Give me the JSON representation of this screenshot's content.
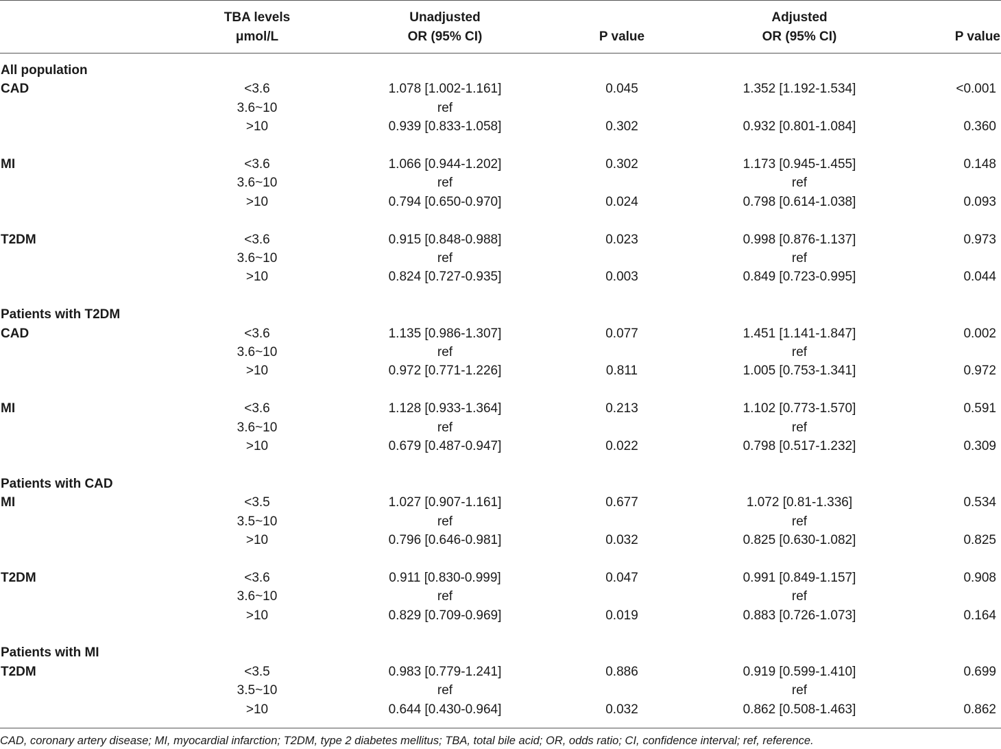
{
  "table": {
    "headers": {
      "tba_line1": "TBA levels",
      "tba_line2": "μmol/L",
      "unadj_line1": "Unadjusted",
      "unadj_line2": "OR (95% CI)",
      "p1": "P value",
      "adj_line1": "Adjusted",
      "adj_line2": "OR (95% CI)",
      "p2": "P value"
    },
    "sections": [
      {
        "title": "All population",
        "blocks": [
          {
            "outcome": "CAD",
            "rows": [
              {
                "level": "<3.6",
                "unadj": "1.078 [1.002-1.161]",
                "p1": "0.045",
                "adj": "1.352 [1.192-1.534]",
                "p2": "<0.001"
              },
              {
                "level": "3.6~10",
                "unadj": "ref",
                "p1": "",
                "adj": "",
                "p2": ""
              },
              {
                "level": ">10",
                "unadj": "0.939 [0.833-1.058]",
                "p1": "0.302",
                "adj": "0.932 [0.801-1.084]",
                "p2": "0.360"
              }
            ]
          },
          {
            "outcome": "MI",
            "rows": [
              {
                "level": "<3.6",
                "unadj": "1.066 [0.944-1.202]",
                "p1": "0.302",
                "adj": "1.173 [0.945-1.455]",
                "p2": "0.148"
              },
              {
                "level": "3.6~10",
                "unadj": "ref",
                "p1": "",
                "adj": "ref",
                "p2": ""
              },
              {
                "level": ">10",
                "unadj": "0.794 [0.650-0.970]",
                "p1": "0.024",
                "adj": "0.798 [0.614-1.038]",
                "p2": "0.093"
              }
            ]
          },
          {
            "outcome": "T2DM",
            "rows": [
              {
                "level": "<3.6",
                "unadj": "0.915 [0.848-0.988]",
                "p1": "0.023",
                "adj": "0.998 [0.876-1.137]",
                "p2": "0.973"
              },
              {
                "level": "3.6~10",
                "unadj": "ref",
                "p1": "",
                "adj": "ref",
                "p2": ""
              },
              {
                "level": ">10",
                "unadj": "0.824 [0.727-0.935]",
                "p1": "0.003",
                "adj": "0.849 [0.723-0.995]",
                "p2": "0.044"
              }
            ]
          }
        ]
      },
      {
        "title": "Patients with T2DM",
        "blocks": [
          {
            "outcome": "CAD",
            "rows": [
              {
                "level": "<3.6",
                "unadj": "1.135 [0.986-1.307]",
                "p1": "0.077",
                "adj": "1.451 [1.141-1.847]",
                "p2": "0.002"
              },
              {
                "level": "3.6~10",
                "unadj": "ref",
                "p1": "",
                "adj": "ref",
                "p2": ""
              },
              {
                "level": ">10",
                "unadj": "0.972 [0.771-1.226]",
                "p1": "0.811",
                "adj": "1.005 [0.753-1.341]",
                "p2": "0.972"
              }
            ]
          },
          {
            "outcome": "MI",
            "rows": [
              {
                "level": "<3.6",
                "unadj": "1.128 [0.933-1.364]",
                "p1": "0.213",
                "adj": "1.102 [0.773-1.570]",
                "p2": "0.591"
              },
              {
                "level": "3.6~10",
                "unadj": "ref",
                "p1": "",
                "adj": "ref",
                "p2": ""
              },
              {
                "level": ">10",
                "unadj": "0.679 [0.487-0.947]",
                "p1": "0.022",
                "adj": "0.798 [0.517-1.232]",
                "p2": "0.309"
              }
            ]
          }
        ]
      },
      {
        "title": "Patients with CAD",
        "blocks": [
          {
            "outcome": "MI",
            "rows": [
              {
                "level": "<3.5",
                "unadj": "1.027 [0.907-1.161]",
                "p1": "0.677",
                "adj": "1.072 [0.81-1.336]",
                "p2": "0.534"
              },
              {
                "level": "3.5~10",
                "unadj": "ref",
                "p1": "",
                "adj": "ref",
                "p2": ""
              },
              {
                "level": ">10",
                "unadj": "0.796 [0.646-0.981]",
                "p1": "0.032",
                "adj": "0.825 [0.630-1.082]",
                "p2": "0.825"
              }
            ]
          },
          {
            "outcome": "T2DM",
            "rows": [
              {
                "level": "<3.6",
                "unadj": "0.911 [0.830-0.999]",
                "p1": "0.047",
                "adj": "0.991 [0.849-1.157]",
                "p2": "0.908"
              },
              {
                "level": "3.6~10",
                "unadj": "ref",
                "p1": "",
                "adj": "ref",
                "p2": ""
              },
              {
                "level": ">10",
                "unadj": "0.829 [0.709-0.969]",
                "p1": "0.019",
                "adj": "0.883 [0.726-1.073]",
                "p2": "0.164"
              }
            ]
          }
        ]
      },
      {
        "title": "Patients with MI",
        "blocks": [
          {
            "outcome": "T2DM",
            "rows": [
              {
                "level": "<3.5",
                "unadj": "0.983 [0.779-1.241]",
                "p1": "0.886",
                "adj": "0.919 [0.599-1.410]",
                "p2": "0.699"
              },
              {
                "level": "3.5~10",
                "unadj": "ref",
                "p1": "",
                "adj": "ref",
                "p2": ""
              },
              {
                "level": ">10",
                "unadj": "0.644 [0.430-0.964]",
                "p1": "0.032",
                "adj": "0.862 [0.508-1.463]",
                "p2": "0.862"
              }
            ]
          }
        ]
      }
    ],
    "footnote": "CAD, coronary artery disease; MI, myocardial infarction; T2DM, type 2 diabetes mellitus; TBA, total bile acid; OR, odds ratio; CI, confidence interval; ref, reference."
  }
}
